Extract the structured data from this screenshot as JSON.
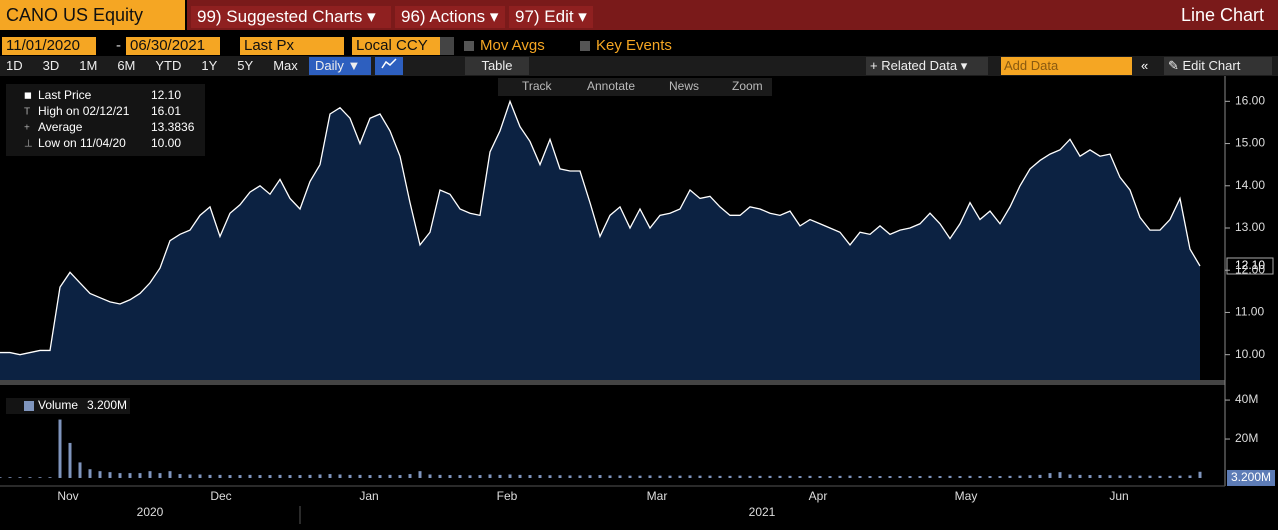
{
  "toolbar": {
    "ticker": "CANO US Equity",
    "menus": [
      "99) Suggested Charts ▾",
      "96) Actions ▾",
      "97) Edit ▾"
    ],
    "view": "Line Chart"
  },
  "controls": {
    "start": "11/01/2020",
    "dash": "-",
    "end": "06/30/2021",
    "field": "Last Px",
    "currency": "Local CCY",
    "options": [
      "Mov Avgs",
      "Key Events"
    ]
  },
  "ranges": [
    "1D",
    "3D",
    "1M",
    "6M",
    "YTD",
    "1Y",
    "5Y",
    "Max"
  ],
  "frequency": "Daily ▼",
  "table": "Table",
  "related": "+ Related Data ▾",
  "add_data": "Add Data",
  "edit_chart": "Edit Chart",
  "chart_tools": [
    "Track",
    "Annotate",
    "News",
    "Zoom"
  ],
  "chart_data": [
    {
      "type": "area",
      "fill": "#0c2242",
      "series": [
        {
          "name": "Last Price",
          "color": "#ffffff",
          "values": [
            10.05,
            10.05,
            10.0,
            10.05,
            10.1,
            10.1,
            11.6,
            11.95,
            11.7,
            11.45,
            11.35,
            11.25,
            11.2,
            11.3,
            11.45,
            11.7,
            12.05,
            12.7,
            12.85,
            12.95,
            13.3,
            13.5,
            12.8,
            13.35,
            13.55,
            13.85,
            14.0,
            13.8,
            14.15,
            13.7,
            13.45,
            14.1,
            14.5,
            15.7,
            15.85,
            15.6,
            15.0,
            15.6,
            15.7,
            15.3,
            14.7,
            13.6,
            12.6,
            12.9,
            13.9,
            13.8,
            13.45,
            13.35,
            13.3,
            14.8,
            15.3,
            16.0,
            15.4,
            15.05,
            14.5,
            15.1,
            14.4,
            14.35,
            14.35,
            13.6,
            12.8,
            13.3,
            13.5,
            13.0,
            13.45,
            13.0,
            13.3,
            13.35,
            13.45,
            13.9,
            13.7,
            13.75,
            13.5,
            13.3,
            13.3,
            13.5,
            13.45,
            13.35,
            13.3,
            13.4,
            13.05,
            13.2,
            13.1,
            13.0,
            12.9,
            12.6,
            12.9,
            12.85,
            13.05,
            12.85,
            12.95,
            13.0,
            13.1,
            13.35,
            13.1,
            12.75,
            13.1,
            13.6,
            13.2,
            13.4,
            13.1,
            13.5,
            14.0,
            14.4,
            14.6,
            14.75,
            14.85,
            15.1,
            14.7,
            14.85,
            14.7,
            14.75,
            14.2,
            13.9,
            13.25,
            12.95,
            12.95,
            13.2,
            13.7,
            12.5,
            12.1
          ]
        }
      ],
      "stats": [
        {
          "label": "Last Price",
          "value": "12.10"
        },
        {
          "label": "High on 02/12/21",
          "value": "16.01"
        },
        {
          "label": "Average",
          "value": "13.3836"
        },
        {
          "label": "Low on 11/04/20",
          "value": "10.00"
        }
      ],
      "xlim": [
        0,
        120
      ],
      "ylim": [
        9.4,
        16.6
      ],
      "yticks": [
        {
          "value": 10,
          "label": "10.00"
        },
        {
          "value": 11,
          "label": "11.00"
        },
        {
          "value": 12,
          "label": "12.00"
        },
        {
          "value": 13,
          "label": "13.00"
        },
        {
          "value": 14,
          "label": "14.00"
        },
        {
          "value": 15,
          "label": "15.00"
        },
        {
          "value": 16,
          "label": "16.00"
        }
      ],
      "xticks": [
        {
          "value": 6.8,
          "label": "Nov"
        },
        {
          "value": 22.1,
          "label": "Dec"
        },
        {
          "value": 36.9,
          "label": "Jan"
        },
        {
          "value": 50.7,
          "label": "Feb"
        },
        {
          "value": 65.7,
          "label": "Mar"
        },
        {
          "value": 81.8,
          "label": "Apr"
        },
        {
          "value": 96.6,
          "label": "May"
        },
        {
          "value": 111.9,
          "label": "Jun"
        }
      ],
      "year_labels": [
        {
          "value": 15,
          "label": "2020"
        },
        {
          "value": 76.2,
          "label": "2021"
        }
      ]
    },
    {
      "type": "bar",
      "series": [
        {
          "name": "Volume",
          "color": "#7f95bd",
          "values": [
            0.4,
            0.4,
            0.4,
            0.4,
            0.4,
            0.4,
            30,
            18,
            8,
            4.5,
            3.5,
            3,
            2.5,
            2.5,
            2.5,
            3.5,
            2.5,
            3.5,
            2,
            1.8,
            1.8,
            1.6,
            1.6,
            1.5,
            1.5,
            1.6,
            1.5,
            1.5,
            1.6,
            1.5,
            1.5,
            1.6,
            1.8,
            2,
            1.8,
            1.6,
            1.6,
            1.5,
            1.5,
            1.6,
            1.5,
            2,
            3.5,
            1.8,
            1.6,
            1.5,
            1.5,
            1.4,
            1.5,
            1.8,
            1.6,
            1.8,
            1.6,
            1.5,
            1.5,
            1.4,
            1.4,
            1.3,
            1.3,
            1.4,
            1.5,
            1.3,
            1.3,
            1.2,
            1.2,
            1.3,
            1.2,
            1.2,
            1.2,
            1.3,
            1.2,
            1.2,
            1.1,
            1.1,
            1.2,
            1.1,
            1.1,
            1.1,
            1.1,
            1.1,
            1.0,
            1.1,
            1.0,
            1.0,
            1.1,
            1.2,
            1.0,
            1.0,
            1.0,
            1.0,
            1.0,
            1.0,
            1.0,
            1.1,
            1.0,
            1.1,
            1.0,
            1.1,
            1.0,
            1.0,
            1.0,
            1.1,
            1.2,
            1.4,
            1.6,
            2.5,
            3,
            1.8,
            1.6,
            1.5,
            1.5,
            1.4,
            1.3,
            1.3,
            1.2,
            1.2,
            1.1,
            1.1,
            1.2,
            1.3,
            3.2
          ]
        }
      ],
      "last_label": "3.200M",
      "xlim": [
        0,
        120
      ],
      "ylim": [
        -3.6,
        46.2
      ],
      "yticks": [
        {
          "value": 40,
          "label": "40M"
        },
        {
          "value": 20,
          "label": "20M"
        }
      ]
    }
  ]
}
